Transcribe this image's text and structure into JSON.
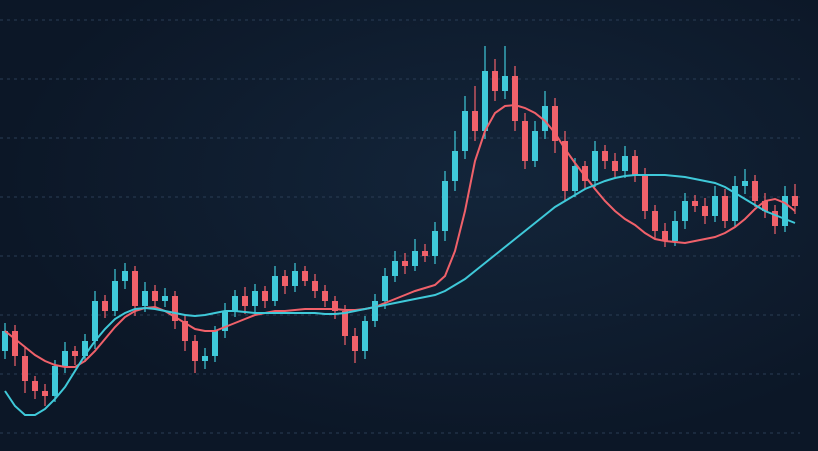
{
  "chart_data": {
    "type": "candlestick",
    "open": [
      100,
      120,
      95,
      70,
      60,
      55,
      85,
      100,
      95,
      110,
      150,
      140,
      170,
      180,
      145,
      160,
      150,
      155,
      130,
      110,
      90,
      95,
      120,
      140,
      155,
      145,
      160,
      150,
      175,
      165,
      180,
      170,
      160,
      150,
      140,
      115,
      100,
      130,
      150,
      175,
      190,
      185,
      200,
      195,
      220,
      270,
      300,
      340,
      320,
      380,
      360,
      375,
      330,
      290,
      320,
      345,
      310,
      260,
      285,
      270,
      300,
      290,
      280,
      295,
      275,
      240,
      220,
      210,
      230,
      250,
      245,
      235,
      255,
      230,
      265,
      270,
      250,
      240,
      225,
      255
    ],
    "high": [
      128,
      126,
      104,
      75,
      67,
      91,
      109,
      105,
      117,
      160,
      156,
      182,
      188,
      185,
      169,
      166,
      163,
      160,
      137,
      116,
      103,
      125,
      148,
      161,
      164,
      167,
      165,
      185,
      181,
      188,
      185,
      177,
      166,
      155,
      146,
      123,
      135,
      157,
      183,
      200,
      198,
      212,
      207,
      229,
      280,
      320,
      355,
      365,
      405,
      392,
      405,
      385,
      338,
      330,
      360,
      353,
      320,
      293,
      290,
      310,
      306,
      298,
      305,
      301,
      283,
      246,
      228,
      240,
      258,
      256,
      253,
      265,
      262,
      275,
      282,
      276,
      258,
      246,
      265,
      267
    ],
    "low": [
      92,
      85,
      58,
      52,
      45,
      49,
      78,
      86,
      89,
      102,
      133,
      135,
      162,
      135,
      139,
      142,
      144,
      122,
      100,
      78,
      82,
      89,
      113,
      134,
      137,
      139,
      143,
      145,
      157,
      159,
      165,
      153,
      144,
      132,
      106,
      88,
      92,
      124,
      142,
      169,
      177,
      180,
      189,
      187,
      210,
      260,
      292,
      310,
      312,
      350,
      352,
      320,
      282,
      284,
      312,
      298,
      250,
      254,
      262,
      264,
      282,
      274,
      273,
      269,
      232,
      212,
      204,
      205,
      222,
      239,
      227,
      229,
      223,
      224,
      257,
      244,
      233,
      217,
      219,
      237
    ],
    "close": [
      120,
      95,
      70,
      60,
      55,
      85,
      100,
      95,
      110,
      150,
      140,
      170,
      180,
      145,
      160,
      150,
      155,
      130,
      110,
      90,
      95,
      120,
      140,
      155,
      145,
      160,
      150,
      175,
      165,
      180,
      170,
      160,
      150,
      140,
      115,
      100,
      130,
      150,
      175,
      190,
      185,
      200,
      195,
      220,
      270,
      300,
      340,
      320,
      380,
      360,
      375,
      330,
      290,
      320,
      345,
      310,
      260,
      285,
      270,
      300,
      290,
      280,
      295,
      275,
      240,
      220,
      210,
      230,
      250,
      245,
      235,
      255,
      230,
      265,
      270,
      250,
      240,
      225,
      255,
      245
    ],
    "up_color": "#3fc9d9",
    "down_color": "#f0616a",
    "overlays": [
      {
        "color": "#f0616a",
        "values": [
          120,
          112,
          104,
          96,
          90,
          86,
          84,
          84,
          90,
          100,
          112,
          124,
          134,
          140,
          143,
          144,
          140,
          134,
          128,
          122,
          120,
          120,
          124,
          128,
          132,
          136,
          138,
          140,
          140,
          141,
          142,
          142,
          142,
          142,
          141,
          141,
          142,
          144,
          148,
          152,
          156,
          160,
          163,
          166,
          175,
          200,
          240,
          290,
          320,
          338,
          345,
          346,
          343,
          338,
          330,
          318,
          302,
          288,
          275,
          262,
          250,
          240,
          232,
          226,
          218,
          212,
          210,
          209,
          208,
          210,
          212,
          214,
          218,
          224,
          232,
          242,
          250,
          252,
          248,
          240
        ]
      },
      {
        "color": "#3fc9d9",
        "values": [
          60,
          45,
          36,
          36,
          42,
          52,
          64,
          80,
          96,
          110,
          122,
          132,
          138,
          142,
          143,
          142,
          140,
          138,
          136,
          135,
          136,
          138,
          140,
          140,
          139,
          138,
          138,
          138,
          138,
          138,
          138,
          138,
          137,
          137,
          138,
          140,
          142,
          144,
          146,
          148,
          150,
          152,
          154,
          156,
          160,
          166,
          172,
          180,
          188,
          196,
          204,
          212,
          220,
          228,
          236,
          244,
          250,
          256,
          262,
          266,
          270,
          273,
          275,
          276,
          276,
          276,
          276,
          275,
          274,
          272,
          270,
          268,
          264,
          258,
          252,
          246,
          240,
          236,
          232,
          228
        ]
      }
    ],
    "ylim": [
      0,
      451
    ],
    "yticks": [
      18,
      77,
      136,
      195,
      254,
      313,
      372,
      431
    ],
    "grid": true
  }
}
